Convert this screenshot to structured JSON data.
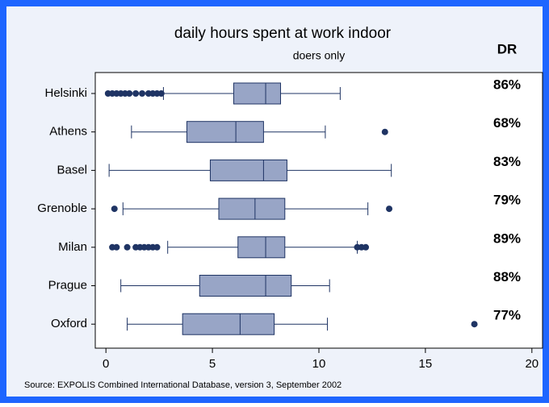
{
  "chart_data": {
    "type": "box",
    "title": "daily hours spent at work indoor",
    "subtitle": "doers only",
    "source": "Source: EXPOLIS Combined International Database, version 3, September 2002",
    "categories": [
      "Helsinki",
      "Athens",
      "Basel",
      "Grenoble",
      "Milan",
      "Prague",
      "Oxford"
    ],
    "boxes": [
      {
        "low": 2.7,
        "q1": 6.0,
        "median": 7.5,
        "q3": 8.2,
        "high": 11.0,
        "outliers": [
          0.1,
          0.3,
          0.5,
          0.7,
          0.9,
          1.1,
          1.4,
          1.7,
          2.0,
          2.2,
          2.4,
          2.6
        ]
      },
      {
        "low": 1.2,
        "q1": 3.8,
        "median": 6.1,
        "q3": 7.4,
        "high": 10.3,
        "outliers": [
          13.1
        ]
      },
      {
        "low": 0.15,
        "q1": 4.9,
        "median": 7.4,
        "q3": 8.5,
        "high": 13.4,
        "outliers": []
      },
      {
        "low": 0.8,
        "q1": 5.3,
        "median": 7.0,
        "q3": 8.4,
        "high": 12.3,
        "outliers": [
          0.4,
          13.3
        ]
      },
      {
        "low": 2.9,
        "q1": 6.2,
        "median": 7.5,
        "q3": 8.4,
        "high": 11.8,
        "outliers": [
          0.3,
          0.5,
          1.0,
          1.4,
          1.6,
          1.8,
          2.0,
          2.2,
          2.4,
          11.8,
          12.0,
          12.2
        ]
      },
      {
        "low": 0.7,
        "q1": 4.4,
        "median": 7.5,
        "q3": 8.7,
        "high": 10.5,
        "outliers": []
      },
      {
        "low": 1.0,
        "q1": 3.6,
        "median": 6.3,
        "q3": 7.9,
        "high": 10.4,
        "outliers": [
          17.3
        ]
      }
    ],
    "box_color": "#98a5c6",
    "line_color": "#1f3464",
    "dr": {
      "title": "DR",
      "values": [
        86,
        68,
        83,
        79,
        89,
        88,
        77
      ],
      "value_labels": [
        "86%",
        "68%",
        "83%",
        "79%",
        "89%",
        "88%",
        "77%"
      ]
    },
    "xlim": [
      -0.5,
      20.5
    ],
    "xticks": [
      0,
      5,
      10,
      15,
      20
    ]
  }
}
